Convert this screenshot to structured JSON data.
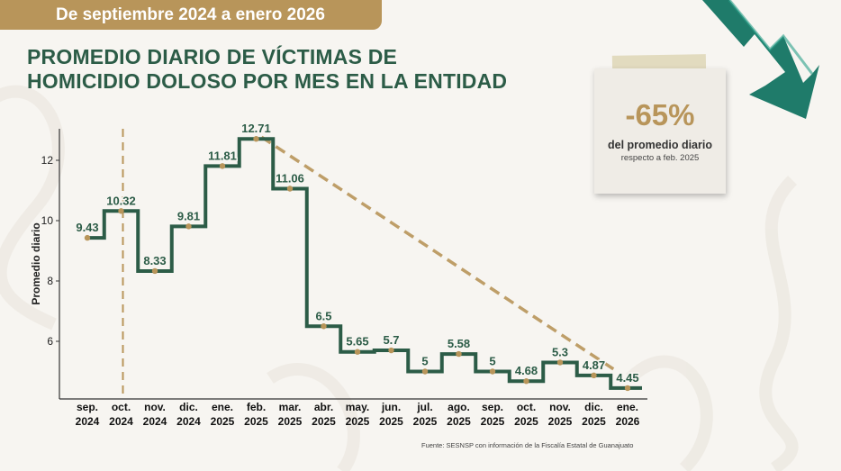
{
  "header": {
    "date_range": "De septiembre 2024 a enero 2026",
    "title_line1": "PROMEDIO DIARIO DE VÍCTIMAS DE",
    "title_line2": "HOMICIDIO DOLOSO POR MES EN LA ENTIDAD"
  },
  "note": {
    "percent": "-65%",
    "line1": "del promedio diario",
    "line2": "respecto a feb. 2025"
  },
  "source": "Fuente: SESNSP con información de la Fiscalía Estatal de Guanajuato",
  "colors": {
    "line": "#2c5c47",
    "accent": "#b8955a",
    "axis": "#333333",
    "arrow": "#1f7b6a"
  },
  "chart_data": {
    "type": "line",
    "step": true,
    "categories": [
      [
        "sep.",
        "2024"
      ],
      [
        "oct.",
        "2024"
      ],
      [
        "nov.",
        "2024"
      ],
      [
        "dic.",
        "2024"
      ],
      [
        "ene.",
        "2025"
      ],
      [
        "feb.",
        "2025"
      ],
      [
        "mar.",
        "2025"
      ],
      [
        "abr.",
        "2025"
      ],
      [
        "may.",
        "2025"
      ],
      [
        "jun.",
        "2025"
      ],
      [
        "jul.",
        "2025"
      ],
      [
        "ago.",
        "2025"
      ],
      [
        "sep.",
        "2025"
      ],
      [
        "oct.",
        "2025"
      ],
      [
        "nov.",
        "2025"
      ],
      [
        "dic.",
        "2025"
      ],
      [
        "ene.",
        "2026"
      ]
    ],
    "values": [
      9.43,
      10.32,
      8.33,
      9.81,
      11.81,
      12.71,
      11.06,
      6.5,
      5.65,
      5.7,
      5,
      5.58,
      5,
      4.68,
      5.3,
      4.87,
      4.45
    ],
    "labels": [
      "9.43",
      "10.32",
      "8.33",
      "9.81",
      "11.81",
      "12.71",
      "11.06",
      "6.5",
      "5.65",
      "5.7",
      "5",
      "5.58",
      "5",
      "4.68",
      "5.3",
      "4.87",
      "4.45"
    ],
    "ylabel": "Promedio diario",
    "yticks": [
      6,
      8,
      10,
      12
    ],
    "ylim": [
      4,
      13.1
    ],
    "marker_category_index": 1,
    "trend_from_index": 5,
    "trend_to_index": 16
  }
}
